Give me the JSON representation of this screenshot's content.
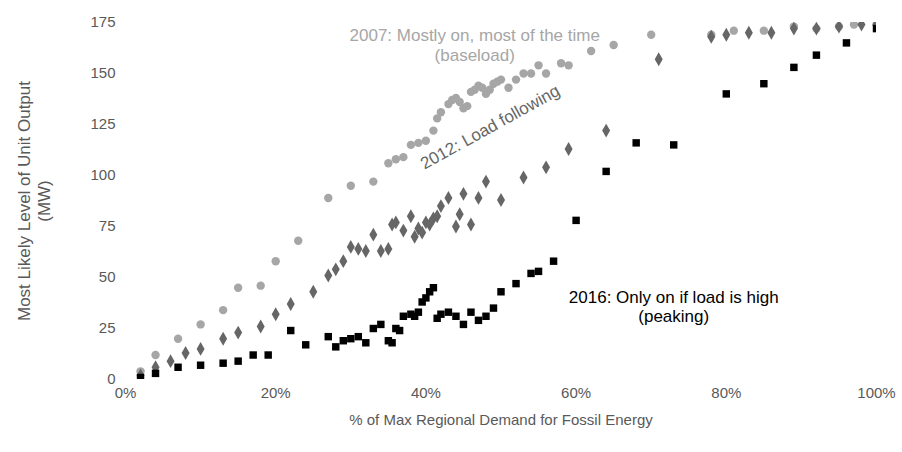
{
  "chart_data": {
    "type": "scatter",
    "x_label": "% of Max Regional Demand for Fossil Energy",
    "y_label": "Most Likely Level of Unit Output\n(MW)",
    "xlim": [
      0,
      100
    ],
    "xticks": [
      {
        "value": 0,
        "label": "0%"
      },
      {
        "value": 20,
        "label": "20%"
      },
      {
        "value": 40,
        "label": "40%"
      },
      {
        "value": 60,
        "label": "60%"
      },
      {
        "value": 80,
        "label": "80%"
      },
      {
        "value": 100,
        "label": "100%"
      }
    ],
    "ylim": [
      0,
      175
    ],
    "yticks": [
      0,
      25,
      50,
      75,
      100,
      125,
      150,
      175
    ],
    "grid": false,
    "annotations": [
      {
        "text": "2007: Mostly on, most of the time\n(baseload)",
        "x": 46.5,
        "y": 164
      },
      {
        "text": "2012: Load following",
        "x": 48.5,
        "y": 124
      },
      {
        "text": "2016: Only on if load is high\n(peaking)",
        "x": 73,
        "y": 36
      }
    ],
    "series": [
      {
        "name": "2007",
        "color": "#a6a6a6",
        "marker": "circle",
        "x": [
          2,
          4,
          7,
          10,
          13,
          15,
          18,
          20,
          23,
          27,
          30,
          33,
          35,
          36,
          37,
          38,
          39,
          40,
          41,
          41.5,
          42,
          43,
          43.5,
          44,
          44.5,
          45,
          45.5,
          46,
          46.5,
          47,
          47.5,
          48,
          48.5,
          49,
          49.5,
          50,
          51,
          52,
          53,
          54,
          55,
          56,
          58,
          59,
          62,
          65,
          70,
          78,
          81,
          85,
          89,
          92,
          95,
          97,
          100
        ],
        "values": [
          4,
          12,
          20,
          27,
          34,
          45,
          46,
          58,
          68,
          89,
          95,
          97,
          106,
          108,
          109,
          115,
          116,
          117,
          122,
          128,
          131,
          135,
          137,
          138,
          136,
          133,
          134,
          141,
          142,
          144,
          143,
          140,
          142,
          145,
          146,
          147,
          143,
          147,
          150,
          150,
          154,
          150,
          155,
          154,
          161,
          164,
          169,
          169,
          171,
          171,
          173,
          172,
          173,
          174,
          174
        ]
      },
      {
        "name": "2012",
        "color": "#666666",
        "marker": "diamond",
        "x": [
          2,
          4,
          6,
          8,
          10,
          13,
          15,
          18,
          20,
          22,
          25,
          27,
          28,
          29,
          30,
          31,
          32,
          33,
          34,
          35,
          35.5,
          36,
          37,
          38,
          38.5,
          39,
          39.5,
          40,
          40.5,
          41,
          41.5,
          42,
          43,
          44,
          44.5,
          45,
          46,
          47,
          48,
          50,
          53,
          56,
          59,
          64,
          71,
          78,
          80,
          83,
          86,
          89,
          92,
          95,
          98,
          100
        ],
        "values": [
          2,
          6,
          9,
          13,
          15,
          20,
          23,
          26,
          32,
          37,
          43,
          51,
          54,
          58,
          65,
          64,
          63,
          71,
          63,
          64,
          76,
          77,
          73,
          80,
          70,
          74,
          72,
          77,
          76,
          79,
          80,
          85,
          89,
          75,
          81,
          91,
          76,
          89,
          97,
          88,
          99,
          104,
          113,
          122,
          157,
          168,
          169,
          170,
          170,
          172,
          172,
          173,
          174,
          174
        ]
      },
      {
        "name": "2016",
        "color": "#000000",
        "marker": "square",
        "x": [
          2,
          4,
          7,
          10,
          13,
          15,
          17,
          19,
          22,
          24,
          27,
          28,
          29,
          30,
          31,
          32,
          33,
          34,
          35,
          35.5,
          36,
          36.5,
          37,
          38,
          38.5,
          39,
          39.5,
          40,
          40.5,
          41,
          41.5,
          42,
          43,
          44,
          45,
          46,
          47,
          48,
          49,
          50,
          52,
          54,
          55,
          57,
          60,
          64,
          68,
          73,
          80,
          85,
          89,
          92,
          96,
          100
        ],
        "values": [
          1,
          3,
          6,
          7,
          8,
          9,
          12,
          12,
          24,
          17,
          21,
          16,
          19,
          20,
          21,
          18,
          25,
          27,
          19,
          18,
          25,
          24,
          31,
          32,
          31,
          33,
          38,
          40,
          43,
          45,
          30,
          32,
          33,
          31,
          27,
          33,
          29,
          31,
          35,
          43,
          47,
          52,
          53,
          58,
          78,
          102,
          116,
          115,
          140,
          145,
          153,
          159,
          165,
          172
        ]
      }
    ]
  }
}
